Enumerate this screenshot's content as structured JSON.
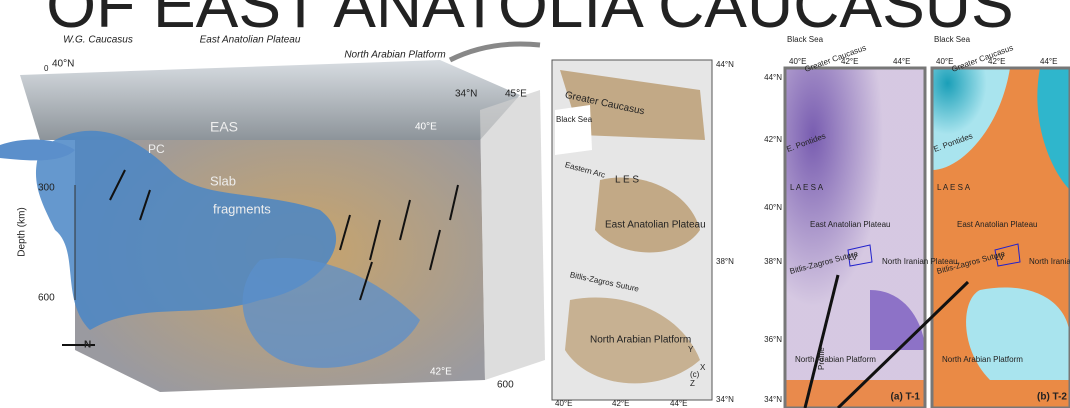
{
  "title": "OF EAST ANATOLIA CAUCASUS",
  "block_diagram": {
    "region_labels": [
      "W.G. Caucasus",
      "East Anatolian Plateau",
      "North Arabian Platform"
    ],
    "coords": [
      "40°N",
      "0",
      "34°N",
      "45°E",
      "40°E",
      "42°E",
      "600"
    ],
    "features": [
      "EAS",
      "PC",
      "Slab",
      "fragments"
    ],
    "depth_axis": {
      "label": "Depth (km)",
      "ticks": [
        "300",
        "600"
      ]
    },
    "north": "N"
  },
  "map": {
    "lat": [
      "44°N",
      "38°N",
      "34°N"
    ],
    "lon": [
      "40°E",
      "42°E",
      "44°E"
    ],
    "labels": [
      "Greater Caucasus",
      "Black Sea",
      "Eastern Arc",
      "L  E  S",
      "East Anatolian Plateau",
      "Bitlis-Zagros Suture",
      "North Arabian Platform"
    ],
    "panel": "(c)",
    "axes": [
      "Y",
      "X",
      "Z"
    ]
  },
  "tomography": [
    {
      "panel": "(a) T-1",
      "profile": "Profile"
    },
    {
      "panel": "(b) T-2"
    }
  ],
  "tomo_common": {
    "lon": [
      "40°E",
      "42°E",
      "44°E"
    ],
    "lat": [
      "44°N",
      "42°N",
      "40°N",
      "38°N",
      "36°N",
      "34°N"
    ],
    "labels": [
      "Black Sea",
      "Greater Caucasus",
      "E. Pontides",
      "L  A  E  S  A",
      "East Anatolian Plateau",
      "North Iranian Plateau",
      "Bitlis-Zagros Suture",
      "North Arabian Platform",
      "LV"
    ]
  }
}
